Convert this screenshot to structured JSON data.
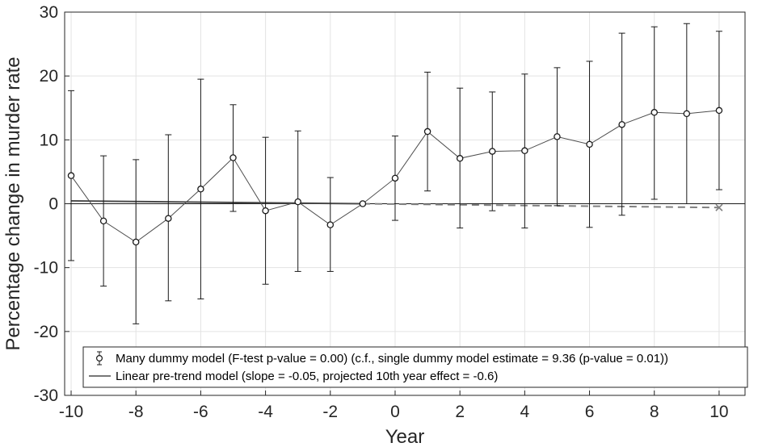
{
  "chart_data": {
    "type": "line",
    "xlabel": "Year",
    "ylabel": "Percentage change in murder rate",
    "xlim": [
      -10.2,
      10.8
    ],
    "ylim": [
      -30,
      30
    ],
    "x_ticks": [
      -10,
      -8,
      -6,
      -4,
      -2,
      0,
      2,
      4,
      6,
      8,
      10
    ],
    "x_tick_labels": [
      "-10",
      "-8",
      "-6",
      "-4",
      "-2",
      "0",
      "2",
      "4",
      "6",
      "8",
      "10"
    ],
    "y_ticks": [
      -30,
      -20,
      -10,
      0,
      10,
      20,
      30
    ],
    "y_tick_labels": [
      "-30",
      "-20",
      "-10",
      "0",
      "10",
      "20",
      "30"
    ],
    "grid": true,
    "legend_position": "bottom",
    "series": [
      {
        "name": "Many dummy model (F-test p-value = 0.00) (c.f., single dummy model estimate = 9.36 (p-value = 0.01))",
        "kind": "errorbar",
        "color": "#1a1a1a",
        "x": [
          -10,
          -9,
          -8,
          -7,
          -6,
          -5,
          -4,
          -3,
          -2,
          -1,
          0,
          1,
          2,
          3,
          4,
          5,
          6,
          7,
          8,
          9,
          10
        ],
        "y": [
          4.4,
          -2.7,
          -6.0,
          -2.3,
          2.3,
          7.2,
          -1.1,
          0.3,
          -3.3,
          0.0,
          4.0,
          11.3,
          7.1,
          8.2,
          8.3,
          10.5,
          9.3,
          12.4,
          14.3,
          14.1,
          14.6
        ],
        "lower": [
          -8.9,
          -12.9,
          -18.8,
          -15.2,
          -14.9,
          -1.2,
          -12.6,
          -10.6,
          -10.6,
          0.0,
          -2.6,
          2.0,
          -3.8,
          -1.1,
          -3.8,
          -0.3,
          -3.7,
          -1.8,
          0.7,
          0.0,
          2.2
        ],
        "upper": [
          17.7,
          7.5,
          6.9,
          10.8,
          19.5,
          15.5,
          10.4,
          11.4,
          4.1,
          0.0,
          10.6,
          20.6,
          18.1,
          17.5,
          20.3,
          21.3,
          22.3,
          26.7,
          27.7,
          28.2,
          27.0
        ]
      },
      {
        "name": "Linear pre-trend model (slope = -0.05, projected 10th year effect = -0.6)",
        "kind": "line",
        "color": "#4a4a4a",
        "x": [
          -10,
          -1
        ],
        "y": [
          0.45,
          0.0
        ],
        "projection": {
          "x": [
            -1,
            10
          ],
          "y": [
            0.0,
            -0.6
          ],
          "color": "#808080",
          "style": "dashed",
          "end_marker": "x"
        }
      }
    ],
    "baseline_y": 0
  }
}
